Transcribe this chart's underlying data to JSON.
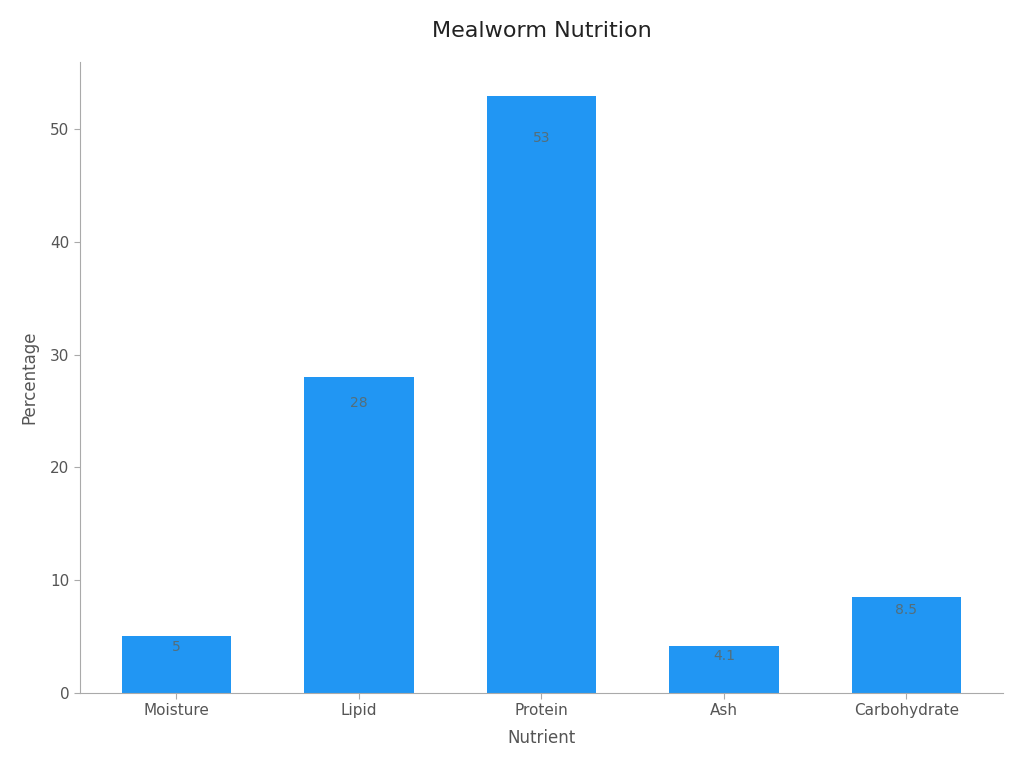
{
  "title": "Mealworm Nutrition",
  "xlabel": "Nutrient",
  "ylabel": "Percentage",
  "categories": [
    "Moisture",
    "Lipid",
    "Protein",
    "Ash",
    "Carbohydrate"
  ],
  "values": [
    5,
    28,
    53,
    4.1,
    8.5
  ],
  "bar_color": "#2196F3",
  "ylim": [
    0,
    56
  ],
  "yticks": [
    0,
    10,
    20,
    30,
    40,
    50
  ],
  "title_fontsize": 16,
  "label_fontsize": 12,
  "tick_fontsize": 11,
  "annotation_fontsize": 10,
  "background_color": "#ffffff",
  "spine_color": "#aaaaaa",
  "text_color": "#555555",
  "annotation_color": "#546e7a"
}
